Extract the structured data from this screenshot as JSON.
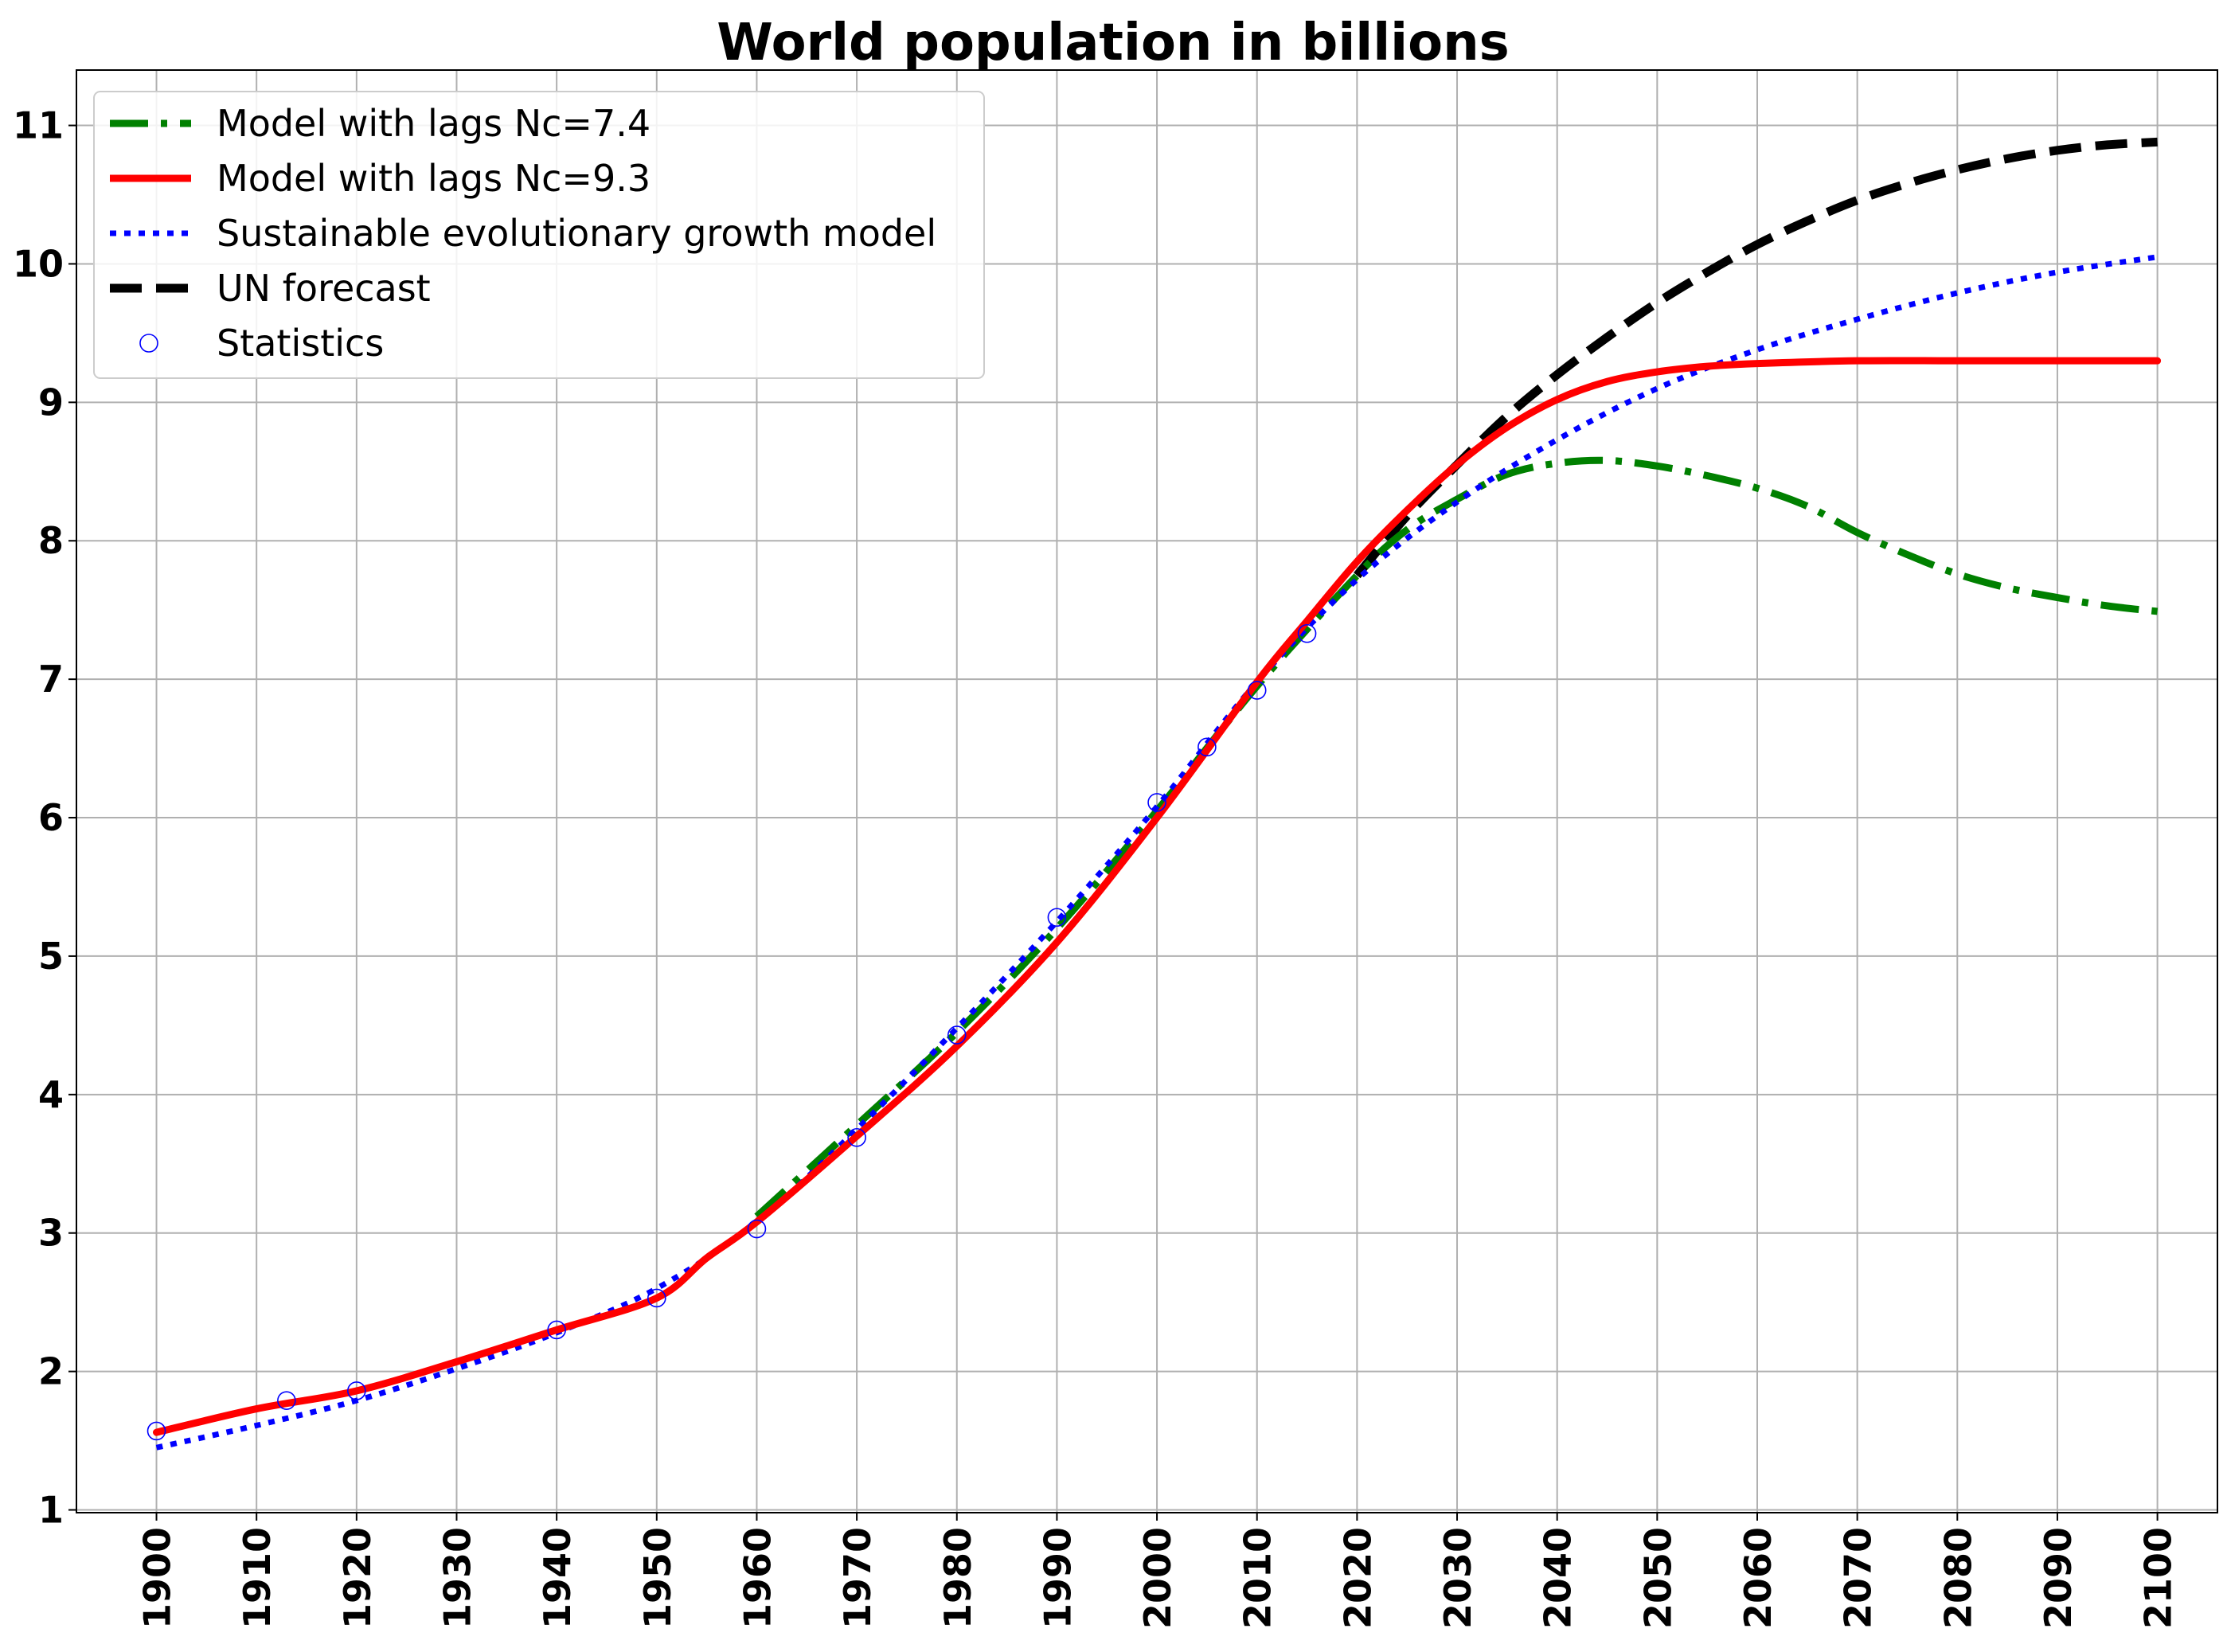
{
  "chart_data": {
    "type": "line",
    "title": "World population in billions",
    "xlabel": "",
    "ylabel": "",
    "xlim": [
      1892,
      2106
    ],
    "ylim": [
      0.98,
      11.4
    ],
    "grid": true,
    "legend_position": "top-left",
    "x_ticks": [
      1900,
      1910,
      1920,
      1930,
      1940,
      1950,
      1960,
      1970,
      1980,
      1990,
      2000,
      2010,
      2020,
      2030,
      2040,
      2050,
      2060,
      2070,
      2080,
      2090,
      2100
    ],
    "y_ticks": [
      1,
      2,
      3,
      4,
      5,
      6,
      7,
      8,
      9,
      10,
      11
    ],
    "series": [
      {
        "name": "Model with lags Nc=7.4",
        "style": "dashdot",
        "color": "#008000",
        "x": [
          1960,
          1970,
          1980,
          1990,
          2000,
          2010,
          2020,
          2025,
          2030,
          2035,
          2040,
          2045,
          2050,
          2055,
          2060,
          2065,
          2070,
          2075,
          2080,
          2085,
          2090,
          2095,
          2100
        ],
        "y": [
          3.12,
          3.78,
          4.45,
          5.2,
          6.05,
          6.95,
          7.75,
          8.08,
          8.3,
          8.48,
          8.56,
          8.58,
          8.54,
          8.47,
          8.38,
          8.25,
          8.06,
          7.9,
          7.76,
          7.66,
          7.59,
          7.53,
          7.49
        ]
      },
      {
        "name": "Model with lags Nc=9.3",
        "style": "solid",
        "color": "#ff0000",
        "x": [
          1900,
          1910,
          1920,
          1930,
          1940,
          1950,
          1955,
          1960,
          1970,
          1980,
          1990,
          2000,
          2010,
          2015,
          2020,
          2025,
          2030,
          2035,
          2040,
          2045,
          2050,
          2055,
          2060,
          2070,
          2080,
          2090,
          2100
        ],
        "y": [
          1.56,
          1.73,
          1.86,
          2.07,
          2.3,
          2.53,
          2.82,
          3.08,
          3.7,
          4.35,
          5.1,
          6.0,
          6.98,
          7.42,
          7.85,
          8.22,
          8.55,
          8.82,
          9.02,
          9.15,
          9.22,
          9.26,
          9.28,
          9.3,
          9.3,
          9.3,
          9.3
        ]
      },
      {
        "name": "Sustainable evolutionary growth model",
        "style": "dotted",
        "color": "#0000ff",
        "x": [
          1900,
          1910,
          1920,
          1930,
          1940,
          1950,
          1960,
          1970,
          1980,
          1990,
          2000,
          2010,
          2020,
          2030,
          2040,
          2050,
          2060,
          2070,
          2080,
          2090,
          2100
        ],
        "y": [
          1.45,
          1.61,
          1.79,
          2.02,
          2.28,
          2.6,
          3.08,
          3.75,
          4.48,
          5.25,
          6.08,
          6.98,
          7.72,
          8.28,
          8.73,
          9.1,
          9.38,
          9.6,
          9.79,
          9.94,
          10.05
        ]
      },
      {
        "name": "UN forecast",
        "style": "dashed",
        "color": "#000000",
        "x": [
          2020,
          2025,
          2030,
          2035,
          2040,
          2045,
          2050,
          2055,
          2060,
          2065,
          2070,
          2075,
          2080,
          2085,
          2090,
          2095,
          2100
        ],
        "y": [
          7.75,
          8.18,
          8.55,
          8.9,
          9.2,
          9.47,
          9.72,
          9.94,
          10.14,
          10.31,
          10.46,
          10.58,
          10.68,
          10.76,
          10.82,
          10.86,
          10.88
        ]
      }
    ],
    "points": {
      "name": "Statistics",
      "marker": "open-circle",
      "color": "#0000ff",
      "x": [
        1900,
        1913,
        1920,
        1940,
        1950,
        1960,
        1970,
        1980,
        1990,
        2000,
        2005,
        2010,
        2015
      ],
      "y": [
        1.57,
        1.79,
        1.86,
        2.3,
        2.53,
        3.03,
        3.69,
        4.43,
        5.28,
        6.11,
        6.51,
        6.92,
        7.33
      ]
    },
    "legend": [
      "Model with lags Nc=7.4",
      "Model with lags Nc=9.3",
      "Sustainable evolutionary growth model",
      "UN forecast",
      "Statistics"
    ]
  }
}
